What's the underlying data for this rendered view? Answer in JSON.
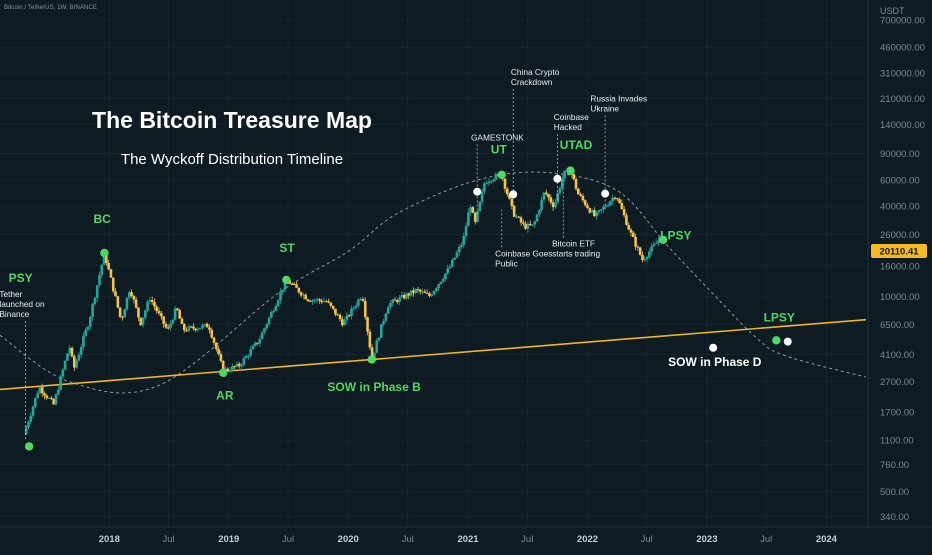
{
  "header": {
    "symbol": "Bitcoin / TetherUS, 1W, BINANCE",
    "currency": "USDT"
  },
  "colors": {
    "background": "#0f1b22",
    "bullish": "#26a69a",
    "bearish": "#f5c24a",
    "support_line": "#f0b429",
    "phase_label": "#4cd964",
    "grid": "#1b2a32",
    "axis_text": "#7d8a91",
    "price_tag": "#f7b924"
  },
  "chart_data": {
    "type": "candlestick",
    "title": "The Bitcoin Treasure Map",
    "subtitle": "The Wyckoff Distribution Timeline",
    "scale": "log",
    "y_tick_labels": [
      "340.00",
      "500.00",
      "760.00",
      "1100.00",
      "1700.00",
      "2700.00",
      "4100.00",
      "6500.00",
      "10000.00",
      "16000.00",
      "26000.00",
      "40000.00",
      "60000.00",
      "90000.00",
      "140000.00",
      "210000.00",
      "310000.00",
      "460000.00",
      "700000.00"
    ],
    "x_tick_labels": [
      "2018",
      "Jul",
      "2019",
      "Jul",
      "2020",
      "Jul",
      "2021",
      "Jul",
      "2022",
      "Jul",
      "2023",
      "Jul",
      "2024"
    ],
    "x_range": [
      "2017-02",
      "2024-05"
    ],
    "y_range": [
      290,
      950000
    ],
    "current_price": "20110.41",
    "price_path": [
      [
        "2017-04-15",
        1200
      ],
      [
        "2017-06-01",
        2500
      ],
      [
        "2017-07-15",
        1900
      ],
      [
        "2017-09-01",
        4700
      ],
      [
        "2017-09-15",
        3300
      ],
      [
        "2017-11-01",
        7000
      ],
      [
        "2017-12-17",
        19500
      ],
      [
        "2018-02-06",
        6900
      ],
      [
        "2018-03-05",
        11500
      ],
      [
        "2018-04-06",
        6600
      ],
      [
        "2018-05-05",
        9800
      ],
      [
        "2018-06-28",
        5900
      ],
      [
        "2018-07-25",
        8400
      ],
      [
        "2018-08-14",
        6000
      ],
      [
        "2018-11-01",
        6400
      ],
      [
        "2018-12-15",
        3200
      ],
      [
        "2019-02-01",
        3450
      ],
      [
        "2019-04-03",
        5100
      ],
      [
        "2019-06-26",
        12900
      ],
      [
        "2019-09-01",
        9600
      ],
      [
        "2019-10-26",
        9300
      ],
      [
        "2019-12-17",
        6600
      ],
      [
        "2020-02-13",
        10400
      ],
      [
        "2020-03-13",
        3800
      ],
      [
        "2020-05-01",
        8800
      ],
      [
        "2020-07-27",
        11000
      ],
      [
        "2020-09-05",
        10100
      ],
      [
        "2020-11-05",
        15500
      ],
      [
        "2020-12-17",
        23500
      ],
      [
        "2021-01-08",
        41900
      ],
      [
        "2021-01-22",
        30000
      ],
      [
        "2021-02-21",
        58000
      ],
      [
        "2021-03-13",
        61700
      ],
      [
        "2021-04-14",
        64800
      ],
      [
        "2021-05-19",
        36000
      ],
      [
        "2021-06-22",
        29300
      ],
      [
        "2021-07-20",
        29500
      ],
      [
        "2021-08-23",
        50000
      ],
      [
        "2021-09-21",
        40000
      ],
      [
        "2021-10-20",
        66000
      ],
      [
        "2021-11-10",
        69000
      ],
      [
        "2021-12-04",
        48000
      ],
      [
        "2022-01-24",
        34000
      ],
      [
        "2022-03-29",
        48000
      ],
      [
        "2022-05-12",
        26700
      ],
      [
        "2022-06-18",
        17600
      ],
      [
        "2022-08-15",
        25000
      ],
      [
        "2022-08-26",
        20110
      ]
    ],
    "support_line": {
      "from": [
        "2017-02-01",
        2400
      ],
      "to": [
        "2024-05-01",
        7000
      ]
    },
    "wyckoff_arc": [
      [
        "2017-02-01",
        5500
      ],
      [
        "2017-09-01",
        2700
      ],
      [
        "2018-06-01",
        2550
      ],
      [
        "2019-06-01",
        10500
      ],
      [
        "2020-01-01",
        20000
      ],
      [
        "2020-06-01",
        36000
      ],
      [
        "2021-02-01",
        60000
      ],
      [
        "2021-09-01",
        67000
      ],
      [
        "2022-04-01",
        51000
      ],
      [
        "2022-09-01",
        22000
      ],
      [
        "2023-01-01",
        11500
      ],
      [
        "2023-06-01",
        5300
      ],
      [
        "2023-09-01",
        4000
      ],
      [
        "2024-05-01",
        2900
      ]
    ],
    "phase_labels": [
      {
        "text": "PSY",
        "date": "2017-05-01",
        "price": 1000,
        "label_date": "2017-04-05",
        "label_price": 12500
      },
      {
        "text": "BC",
        "date": "2017-12-17",
        "price": 19500,
        "label_date": "2017-12-10",
        "label_price": 31000
      },
      {
        "text": "AR",
        "date": "2018-12-15",
        "price": 3100,
        "label_date": "2018-12-20",
        "label_price": 2050
      },
      {
        "text": "ST",
        "date": "2019-06-26",
        "price": 12900,
        "label_date": "2019-06-28",
        "label_price": 19800
      },
      {
        "text": "SOW in Phase B",
        "date": "2020-03-13",
        "price": 3800,
        "label_date": "2020-03-20",
        "label_price": 2350
      },
      {
        "text": "UT",
        "date": "2021-04-14",
        "price": 64800,
        "label_date": "2021-04-05",
        "label_price": 90000
      },
      {
        "text": "UTAD",
        "date": "2021-11-10",
        "price": 69000,
        "label_date": "2021-11-27",
        "label_price": 96000
      },
      {
        "text": "LPSY",
        "date": "2022-08-20",
        "price": 23900,
        "label_date": "2022-09-28",
        "label_price": 24000
      },
      {
        "text": "LPSY",
        "date": "2023-08-01",
        "price": 5100,
        "label_date": "2023-08-10",
        "label_price": 6800
      }
    ],
    "event_annotations": [
      {
        "text": "Tether launched on Binance",
        "lines": [
          "Tether",
          "launched on",
          "Binance"
        ],
        "date": "2017-04-20",
        "price": 1100,
        "label_date": "2017-01-30",
        "label_price": 9900
      },
      {
        "text": "GAMESTONK",
        "lines": [
          "GAMESTONK"
        ],
        "date": "2021-01-29",
        "price": 34000,
        "label_date": "2021-01-10",
        "label_price": 110000
      },
      {
        "text": "China Crypto Crackdown",
        "lines": [
          "China Crypto",
          "Crackdown"
        ],
        "date": "2021-05-19",
        "price": 36000,
        "label_date": "2021-05-12",
        "label_price": 300000
      },
      {
        "text": "Coinbase Goes Public",
        "lines": [
          "Coinbase Goes",
          "Public"
        ],
        "date": "2021-04-14",
        "price": 38000,
        "label_date": "2021-03-25",
        "label_price": 18500
      },
      {
        "text": "Coinbase Hacked",
        "lines": [
          "Coinbase",
          "Hacked"
        ],
        "date": "2021-10-01",
        "price": 43000,
        "label_date": "2021-09-20",
        "label_price": 150000
      },
      {
        "text": "Bitcoin ETF starts trading",
        "lines": [
          "Bitcoin ETF",
          "starts trading"
        ],
        "date": "2021-10-19",
        "price": 62000,
        "label_date": "2021-09-15",
        "label_price": 21500
      },
      {
        "text": "Russia Invades Ukraine",
        "lines": [
          "Russia Invades",
          "Ukraine"
        ],
        "date": "2022-02-24",
        "price": 38000,
        "label_date": "2022-01-10",
        "label_price": 200000
      }
    ],
    "markers": [
      {
        "date": "2021-01-29",
        "price": 50000,
        "kind": "white"
      },
      {
        "date": "2021-05-19",
        "price": 48000,
        "kind": "white"
      },
      {
        "date": "2021-10-01",
        "price": 61000,
        "kind": "white"
      },
      {
        "date": "2022-02-24",
        "price": 48500,
        "kind": "white"
      },
      {
        "date": "2023-01-20",
        "price": 4550,
        "kind": "white"
      },
      {
        "date": "2023-09-05",
        "price": 5000,
        "kind": "white"
      }
    ],
    "sow_phase_d": {
      "text": "SOW in Phase D",
      "label_date": "2023-01-25",
      "label_price": 3450
    }
  }
}
